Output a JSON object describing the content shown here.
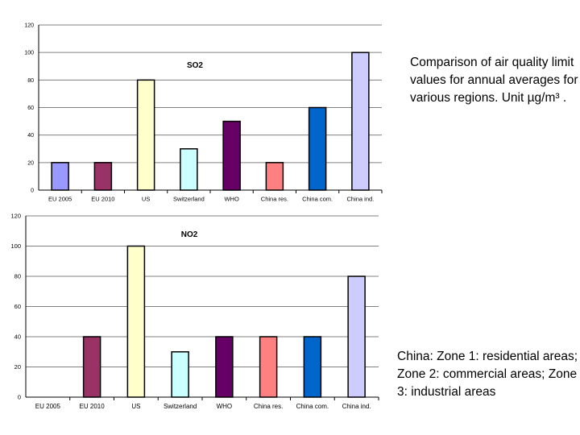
{
  "captions": {
    "comparison": "Comparison of air quality limit values for annual averages for various regions. Unit µg/m³ .",
    "zones": "China: Zone 1: residential areas; Zone 2: commercial areas; Zone 3: industrial areas"
  },
  "chart_data": [
    {
      "type": "bar",
      "title": "SO2",
      "xlabel": "",
      "ylabel": "",
      "categories": [
        "EU 2005",
        "EU 2010",
        "US",
        "Switzerland",
        "WHO",
        "China res.",
        "China com.",
        "China ind."
      ],
      "values": [
        20,
        20,
        80,
        30,
        50,
        20,
        60,
        100
      ],
      "colors": [
        "#9999ff",
        "#993366",
        "#ffffcc",
        "#ccffff",
        "#660066",
        "#ff8080",
        "#0066cc",
        "#ccccff"
      ],
      "ylim": [
        0,
        120
      ],
      "yticks": [
        0,
        20,
        40,
        60,
        80,
        100,
        120
      ],
      "grid": true,
      "legend": "none"
    },
    {
      "type": "bar",
      "title": "NO2",
      "xlabel": "",
      "ylabel": "",
      "categories": [
        "EU 2005",
        "EU 2010",
        "US",
        "Switzerland",
        "WHO",
        "China res.",
        "China com.",
        "China ind."
      ],
      "values": [
        0,
        40,
        100,
        30,
        40,
        40,
        40,
        80
      ],
      "colors": [
        "#9999ff",
        "#993366",
        "#ffffcc",
        "#ccffff",
        "#660066",
        "#ff8080",
        "#0066cc",
        "#ccccff"
      ],
      "ylim": [
        0,
        120
      ],
      "yticks": [
        0,
        20,
        40,
        60,
        80,
        100,
        120
      ],
      "grid": true,
      "legend": "none"
    }
  ]
}
